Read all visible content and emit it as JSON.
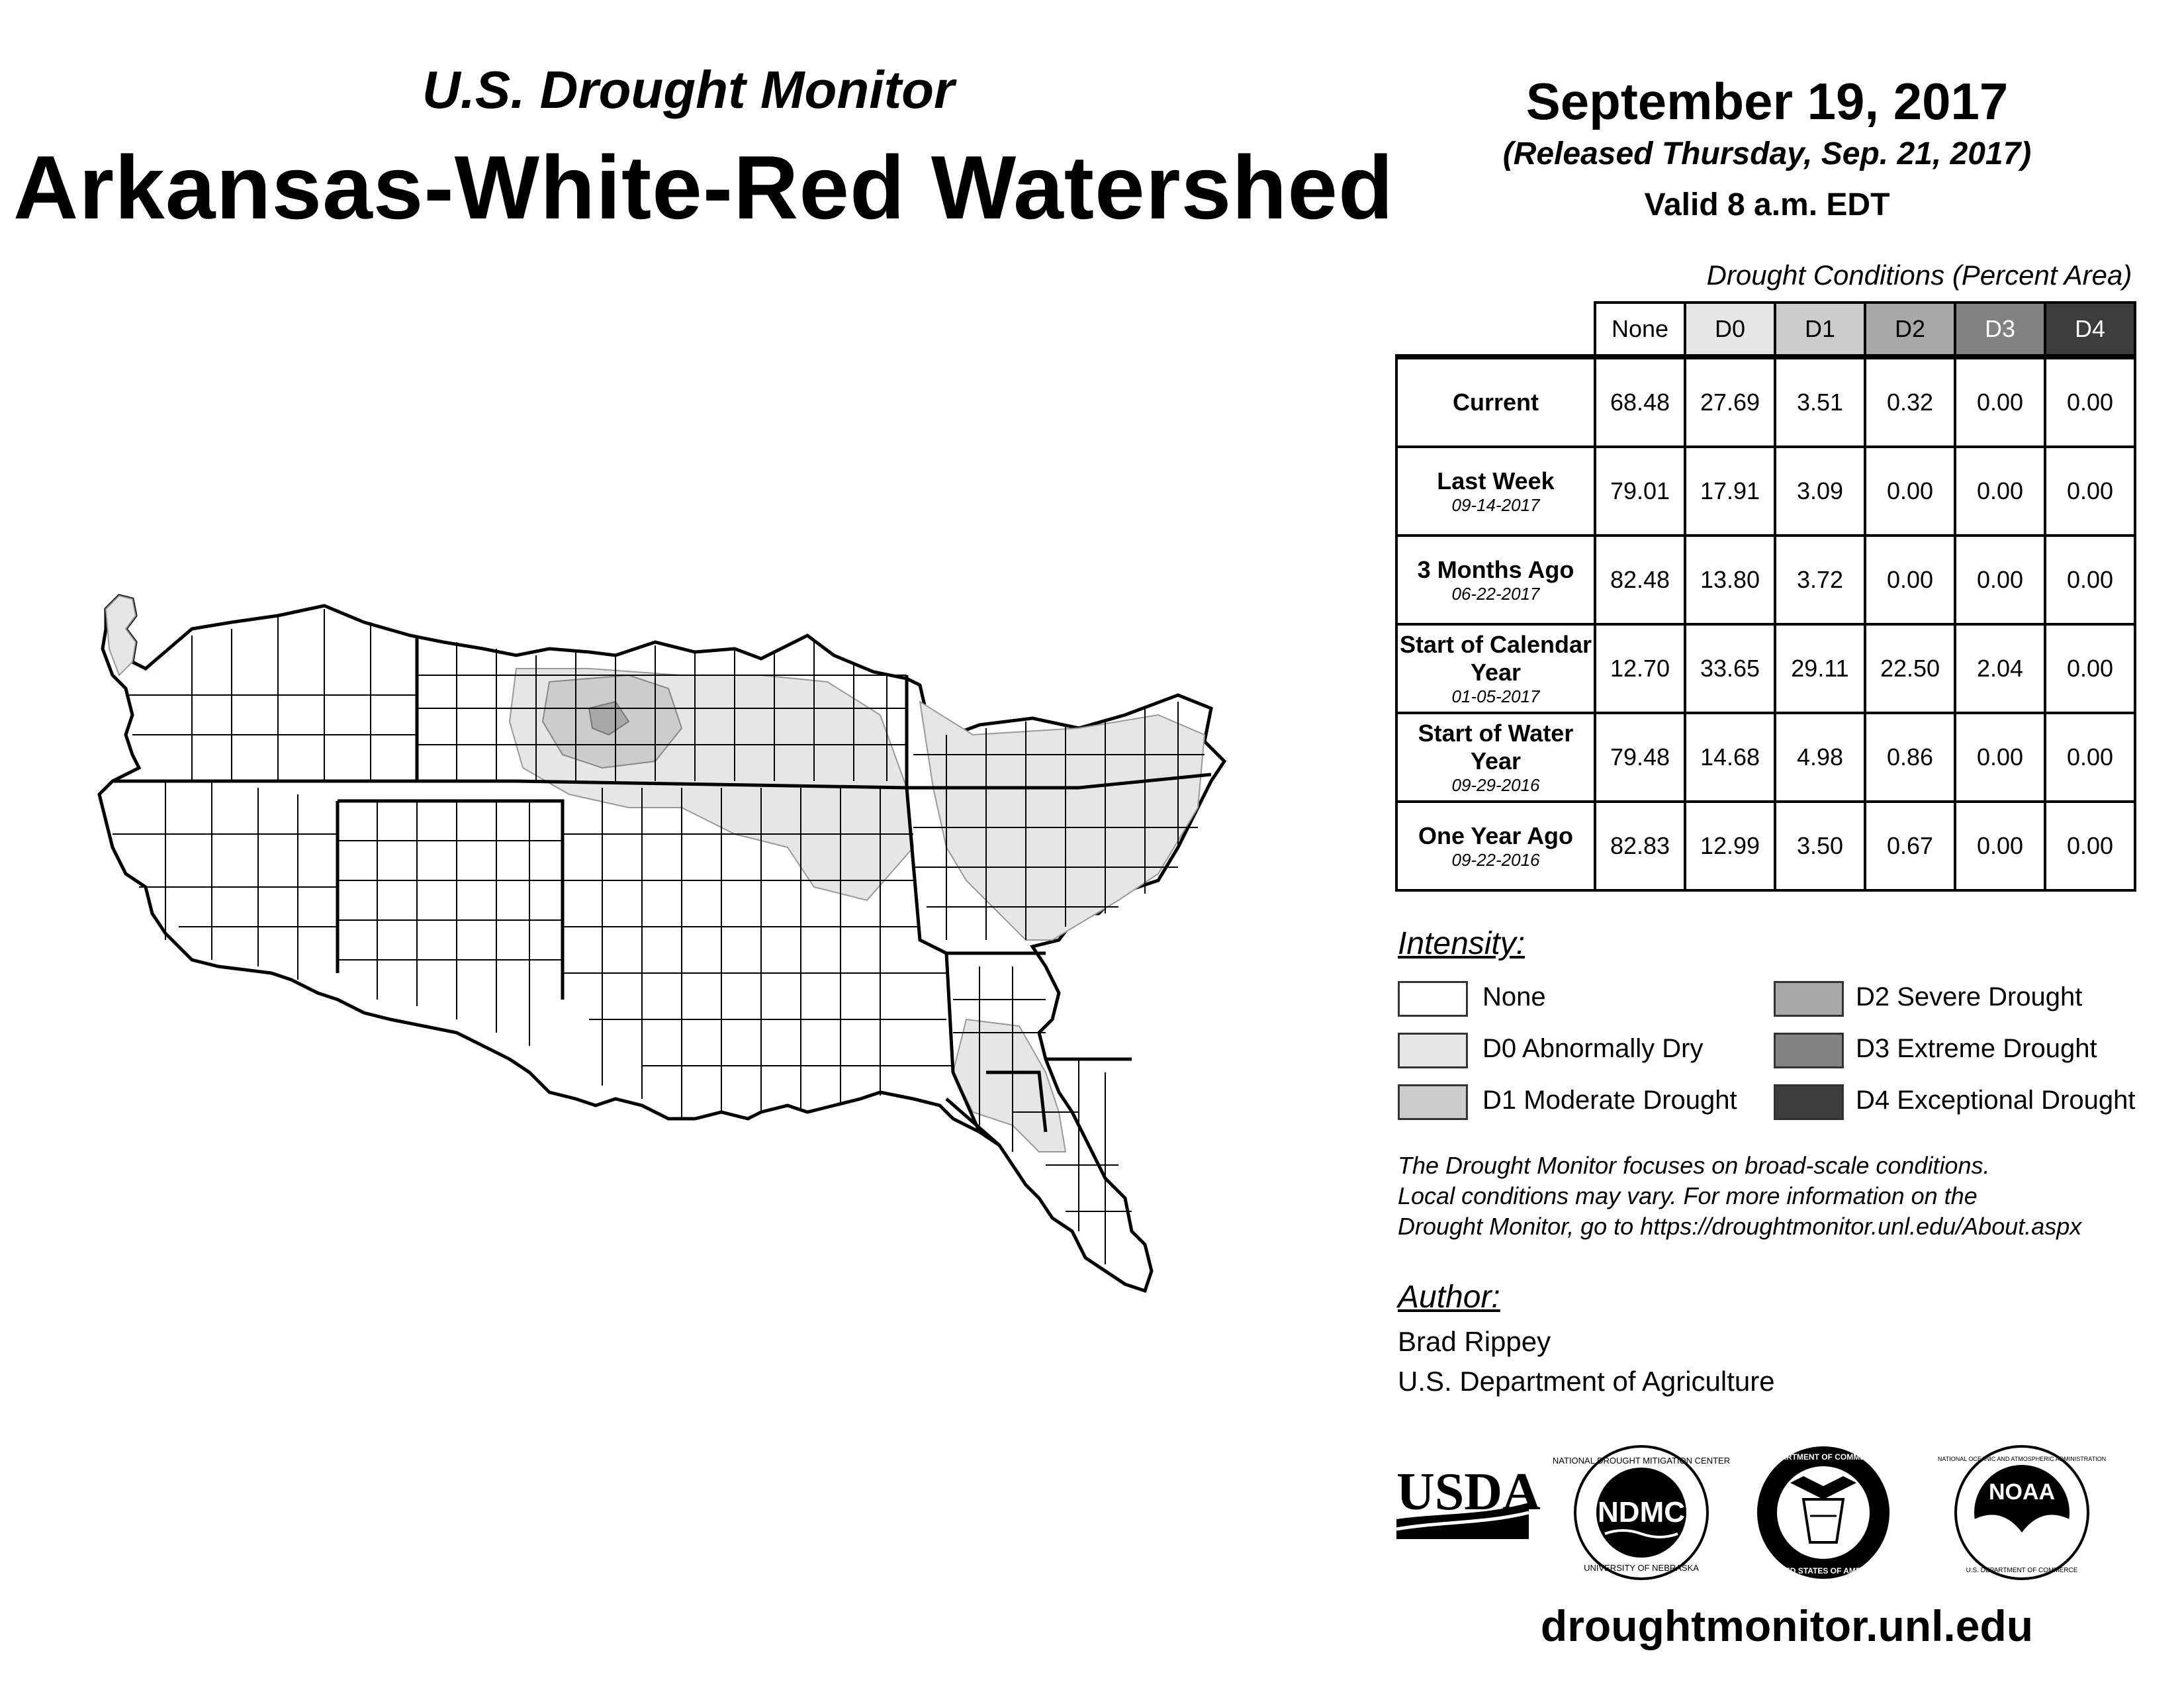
{
  "header": {
    "subtitle": "U.S. Drought Monitor",
    "title": "Arkansas-White-Red Watershed",
    "date": "September 19, 2017",
    "released": "(Released Thursday, Sep. 21, 2017)",
    "valid": "Valid 8 a.m. EDT"
  },
  "table": {
    "caption": "Drought Conditions (Percent Area)",
    "columns": [
      "None",
      "D0",
      "D1",
      "D2",
      "D3",
      "D4"
    ],
    "rows": [
      {
        "label": "Current",
        "date": "",
        "values": [
          "68.48",
          "27.69",
          "3.51",
          "0.32",
          "0.00",
          "0.00"
        ]
      },
      {
        "label": "Last Week",
        "date": "09-14-2017",
        "values": [
          "79.01",
          "17.91",
          "3.09",
          "0.00",
          "0.00",
          "0.00"
        ]
      },
      {
        "label": "3 Months Ago",
        "date": "06-22-2017",
        "values": [
          "82.48",
          "13.80",
          "3.72",
          "0.00",
          "0.00",
          "0.00"
        ]
      },
      {
        "label": "Start of Calendar Year",
        "date": "01-05-2017",
        "values": [
          "12.70",
          "33.65",
          "29.11",
          "22.50",
          "2.04",
          "0.00"
        ]
      },
      {
        "label": "Start of Water Year",
        "date": "09-29-2016",
        "values": [
          "79.48",
          "14.68",
          "4.98",
          "0.86",
          "0.00",
          "0.00"
        ]
      },
      {
        "label": "One Year Ago",
        "date": "09-22-2016",
        "values": [
          "82.83",
          "12.99",
          "3.50",
          "0.67",
          "0.00",
          "0.00"
        ]
      }
    ]
  },
  "legend": {
    "heading": "Intensity:",
    "items": [
      {
        "label": "None",
        "color": "#ffffff"
      },
      {
        "label": "D0 Abnormally Dry",
        "color": "#e6e6e6"
      },
      {
        "label": "D1 Moderate Drought",
        "color": "#cccccc"
      },
      {
        "label": "D2 Severe Drought",
        "color": "#a8a8a8"
      },
      {
        "label": "D3 Extreme Drought",
        "color": "#828282"
      },
      {
        "label": "D4 Exceptional Drought",
        "color": "#3c3c3c"
      }
    ]
  },
  "note": {
    "line1": "The Drought Monitor focuses on broad-scale conditions.",
    "line2": "Local conditions may vary. For more information on the",
    "line3": "Drought Monitor, go to https://droughtmonitor.unl.edu/About.aspx"
  },
  "author": {
    "heading": "Author:",
    "name": "Brad Rippey",
    "org": "U.S. Department of Agriculture"
  },
  "logos": {
    "usda": "USDA",
    "ndmc": "NDMC",
    "ndmc_ring": "NATIONAL DROUGHT MITIGATION CENTER",
    "ndmc_ring_bottom": "UNIVERSITY OF NEBRASKA",
    "doc_ring": "DEPARTMENT OF COMMERCE",
    "doc_ring_bottom": "UNITED STATES OF AMERICA",
    "noaa": "NOAA",
    "noaa_ring": "NATIONAL OCEANIC AND ATMOSPHERIC ADMINISTRATION",
    "noaa_ring_bottom": "U.S. DEPARTMENT OF COMMERCE"
  },
  "footer": {
    "url": "droughtmonitor.unl.edu"
  }
}
